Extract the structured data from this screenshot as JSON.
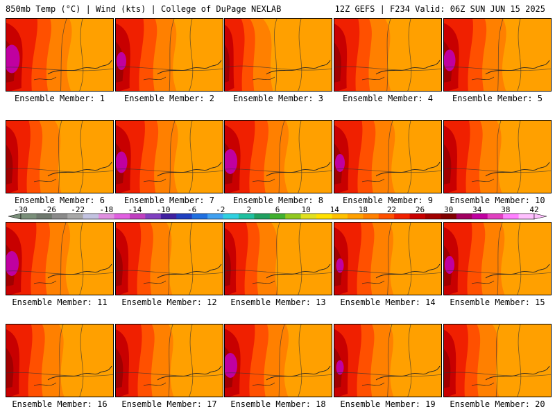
{
  "header": {
    "left": "850mb Temp (°C) | Wind (kts) | College of DuPage NEXLAB",
    "right": "12Z GEFS | F234 Valid: 06Z SUN JUN 15 2025"
  },
  "members": [
    {
      "label": "Ensemble Member: 1",
      "warmth": 0.85
    },
    {
      "label": "Ensemble Member: 2",
      "warmth": 0.7
    },
    {
      "label": "Ensemble Member: 3",
      "warmth": 0.25
    },
    {
      "label": "Ensemble Member: 4",
      "warmth": 0.55
    },
    {
      "label": "Ensemble Member: 5",
      "warmth": 0.75
    },
    {
      "label": "Ensemble Member: 6",
      "warmth": 0.5
    },
    {
      "label": "Ensemble Member: 7",
      "warmth": 0.75
    },
    {
      "label": "Ensemble Member: 8",
      "warmth": 0.8
    },
    {
      "label": "Ensemble Member: 9",
      "warmth": 0.7
    },
    {
      "label": "Ensemble Member: 10",
      "warmth": 0.6
    },
    {
      "label": "Ensemble Member: 11",
      "warmth": 0.8
    },
    {
      "label": "Ensemble Member: 12",
      "warmth": 0.55
    },
    {
      "label": "Ensemble Member: 13",
      "warmth": 0.45
    },
    {
      "label": "Ensemble Member: 14",
      "warmth": 0.65
    },
    {
      "label": "Ensemble Member: 15",
      "warmth": 0.7
    },
    {
      "label": "Ensemble Member: 16",
      "warmth": 0.6
    },
    {
      "label": "Ensemble Member: 17",
      "warmth": 0.6
    },
    {
      "label": "Ensemble Member: 18",
      "warmth": 0.8
    },
    {
      "label": "Ensemble Member: 19",
      "warmth": 0.65
    },
    {
      "label": "Ensemble Member: 20",
      "warmth": 0.5
    }
  ],
  "colorbar": {
    "tick_labels": [
      "-30",
      "-26",
      "-22",
      "-18",
      "-14",
      "-10",
      "-6",
      "-2",
      "2",
      "6",
      "10",
      "14",
      "18",
      "22",
      "26",
      "30",
      "34",
      "38",
      "42"
    ],
    "colors": [
      "#7a8f7a",
      "#6e786e",
      "#8a8a8a",
      "#a8a8a8",
      "#c2c2e0",
      "#e090e0",
      "#e060e0",
      "#c040c0",
      "#8040c0",
      "#4020a0",
      "#2040c0",
      "#2070e0",
      "#40a0f0",
      "#30d0e0",
      "#20c0a0",
      "#20a060",
      "#40b030",
      "#90c820",
      "#e0e020",
      "#ffe000",
      "#ffc000",
      "#ffa000",
      "#ff8000",
      "#ff5000",
      "#f02000",
      "#c80000",
      "#a00000",
      "#800000",
      "#a00060",
      "#c000a0",
      "#e040c0",
      "#ff80ff",
      "#ffc0ff"
    ],
    "map_colors": [
      "#ffa000",
      "#ff8000",
      "#ff5000",
      "#f02000",
      "#c80000",
      "#a00000",
      "#a00060",
      "#c000a0"
    ]
  }
}
